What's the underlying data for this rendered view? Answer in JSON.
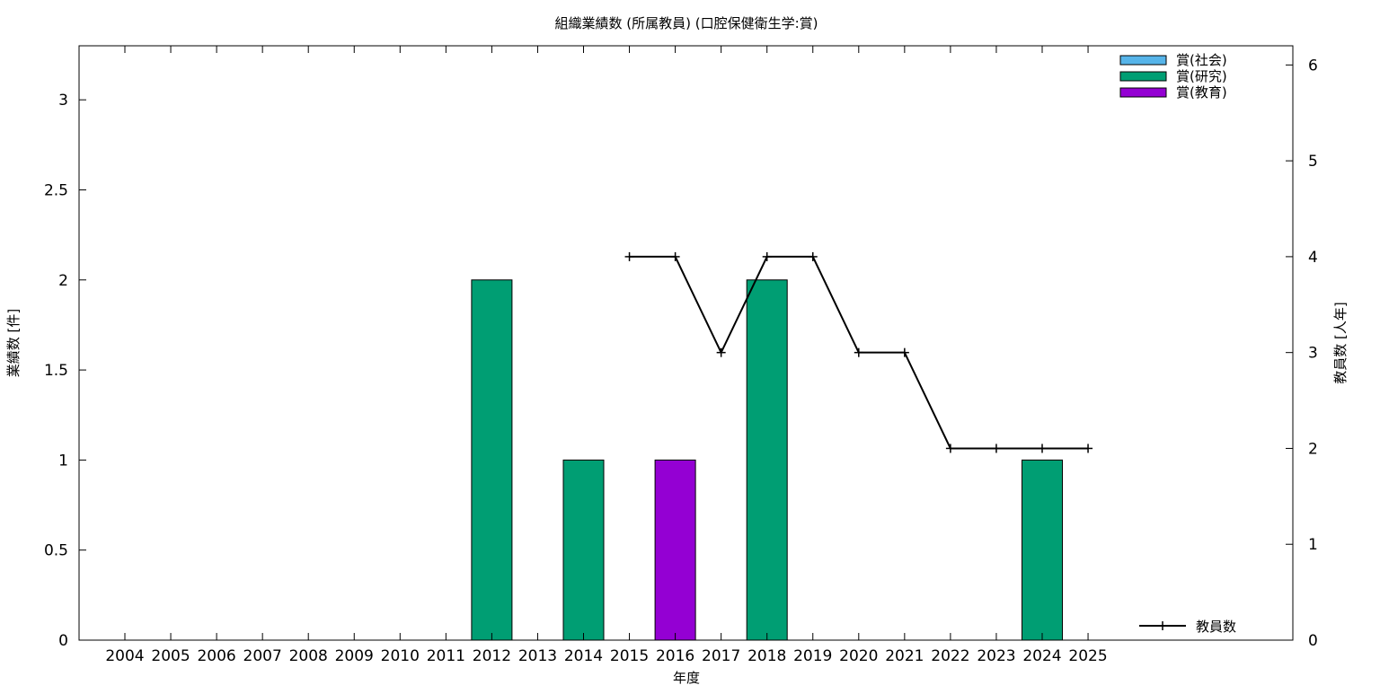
{
  "chart_data": {
    "type": "bar",
    "title": "組織業績数 (所属教員) (口腔保健衛生学:賞)",
    "xlabel": "年度",
    "ylabel": "業績数 [件]",
    "y2label": "教員数 [人年]",
    "ylim": [
      0,
      3.3
    ],
    "y2lim": [
      0,
      6.2
    ],
    "yticks": [
      0,
      0.5,
      1,
      1.5,
      2,
      2.5,
      3
    ],
    "y2ticks": [
      0,
      1,
      2,
      3,
      4,
      5,
      6
    ],
    "categories": [
      "2004",
      "2005",
      "2006",
      "2007",
      "2008",
      "2009",
      "2010",
      "2011",
      "2012",
      "2013",
      "2014",
      "2015",
      "2016",
      "2017",
      "2018",
      "2019",
      "2020",
      "2021",
      "2022",
      "2023",
      "2024",
      "2025"
    ],
    "series": [
      {
        "name": "賞(社会)",
        "color": "#56b4e9",
        "values": [
          0,
          0,
          0,
          0,
          0,
          0,
          0,
          0,
          0,
          0,
          0,
          0,
          0,
          0,
          0,
          0,
          0,
          0,
          0,
          0,
          0,
          0
        ]
      },
      {
        "name": "賞(研究)",
        "color": "#009e73",
        "values": [
          0,
          0,
          0,
          0,
          0,
          0,
          0,
          0,
          2,
          0,
          1,
          0,
          0,
          0,
          2,
          0,
          0,
          0,
          0,
          0,
          1,
          0
        ]
      },
      {
        "name": "賞(教育)",
        "color": "#9400d3",
        "values": [
          0,
          0,
          0,
          0,
          0,
          0,
          0,
          0,
          0,
          0,
          0,
          0,
          1,
          0,
          0,
          0,
          0,
          0,
          0,
          0,
          0,
          0
        ]
      }
    ],
    "line_series": {
      "name": "教員数",
      "axis": "y2",
      "color": "#000000",
      "x": [
        "2015",
        "2016",
        "2017",
        "2018",
        "2019",
        "2020",
        "2021",
        "2022",
        "2023",
        "2024",
        "2025"
      ],
      "values": [
        4,
        4,
        3,
        4,
        4,
        3,
        3,
        2,
        2,
        2,
        2
      ]
    },
    "legend_position": "top-right",
    "grid": false
  }
}
